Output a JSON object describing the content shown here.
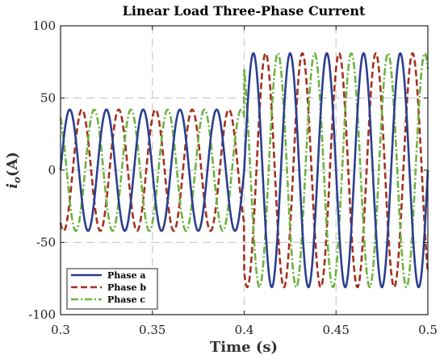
{
  "chart_data": {
    "type": "line",
    "title": "Linear Load Three-Phase Current",
    "xlabel": "Time (s)",
    "ylabel_base": "i",
    "ylabel_sub": "o",
    "ylabel_unit": "(A)",
    "xlim": [
      0.3,
      0.5
    ],
    "ylim": [
      -100,
      100
    ],
    "xticks": [
      0.3,
      0.35,
      0.4,
      0.45,
      0.5
    ],
    "xtick_labels": [
      "0.3",
      "0.35",
      "0.4",
      "0.45",
      "0.5"
    ],
    "yticks": [
      -100,
      -50,
      0,
      50,
      100
    ],
    "ytick_labels": [
      "-100",
      "-50",
      "0",
      "50",
      "100"
    ],
    "grid": true,
    "legend_position": "bottom-left",
    "frequency_hz": 50,
    "step_time_s": 0.4,
    "series": [
      {
        "name": "Phase a",
        "color": "#2b3f8f",
        "style": "solid",
        "amplitude_before": 42,
        "amplitude_after": 81,
        "phase_deg": 0
      },
      {
        "name": "Phase b",
        "color": "#a3301f",
        "style": "dashed",
        "amplitude_before": 42,
        "amplitude_after": 81,
        "phase_deg": -120
      },
      {
        "name": "Phase c",
        "color": "#6db33f",
        "style": "dashdot",
        "amplitude_before": 42,
        "amplitude_after": 81,
        "phase_deg": 120
      }
    ]
  }
}
